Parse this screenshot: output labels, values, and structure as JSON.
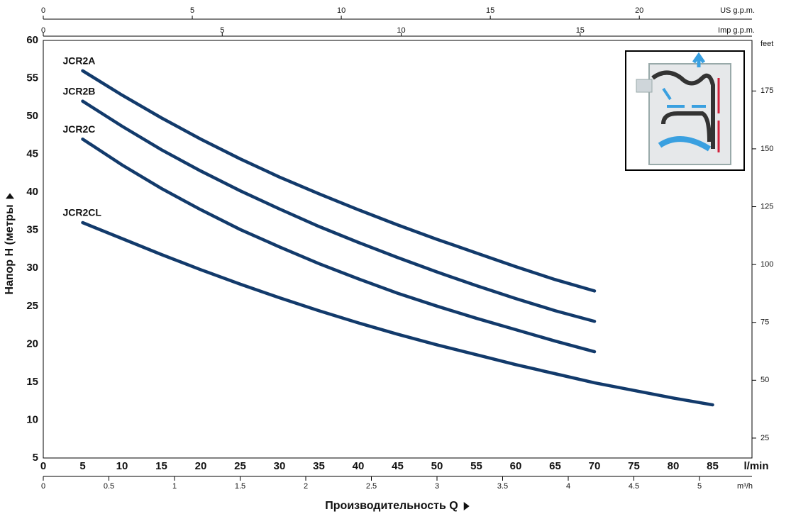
{
  "chart_data": {
    "type": "line",
    "y_label": "Напор H (метры",
    "x_label": "Производительность Q",
    "x_unit": "l/min",
    "x": [
      5,
      10,
      15,
      20,
      25,
      30,
      35,
      40,
      45,
      50,
      55,
      60,
      65,
      70,
      75,
      80,
      85
    ],
    "series": [
      {
        "name": "JCR2A",
        "color": "#123a6b",
        "values": [
          56,
          52.8,
          49.8,
          47,
          44.4,
          42,
          39.8,
          37.7,
          35.7,
          33.8,
          32,
          30.2,
          28.5,
          27,
          null,
          null,
          null
        ]
      },
      {
        "name": "JCR2B",
        "color": "#123a6b",
        "values": [
          52,
          48.7,
          45.6,
          42.8,
          40.2,
          37.8,
          35.5,
          33.4,
          31.4,
          29.5,
          27.7,
          26,
          24.4,
          23,
          null,
          null,
          null
        ]
      },
      {
        "name": "JCR2C",
        "color": "#123a6b",
        "values": [
          47,
          43.6,
          40.5,
          37.7,
          35.1,
          32.8,
          30.6,
          28.6,
          26.7,
          25,
          23.4,
          21.9,
          20.4,
          19,
          null,
          null,
          null
        ]
      },
      {
        "name": "JCR2CL",
        "color": "#123a6b",
        "values": [
          36,
          33.9,
          31.8,
          29.8,
          27.9,
          26.1,
          24.4,
          22.8,
          21.3,
          19.9,
          18.6,
          17.3,
          16.1,
          14.9,
          13.9,
          12.9,
          12
        ]
      }
    ],
    "xlim": [
      0,
      90
    ],
    "xticks": [
      0,
      5,
      10,
      15,
      20,
      25,
      30,
      35,
      40,
      45,
      50,
      55,
      60,
      65,
      70,
      75,
      80,
      85
    ],
    "ylim": [
      5,
      60
    ],
    "yticks": [
      5,
      10,
      15,
      20,
      25,
      30,
      35,
      40,
      45,
      50,
      55,
      60
    ],
    "grid": true,
    "y2_label": "feet",
    "y2lim": [
      16.4,
      196.85
    ],
    "y2ticks": [
      25,
      50,
      75,
      100,
      125,
      150,
      175
    ],
    "top_axes": [
      {
        "label": "US g.p.m.",
        "lim": [
          0,
          23.78
        ],
        "ticks": [
          0,
          5,
          10,
          15,
          20
        ]
      },
      {
        "label": "Imp g.p.m.",
        "lim": [
          0,
          19.8
        ],
        "ticks": [
          0,
          5,
          10,
          15
        ]
      }
    ],
    "bottom_axis": {
      "label": "m³/h",
      "lim": [
        0,
        5.4
      ],
      "ticks": [
        0,
        0.5,
        1,
        1.5,
        2,
        2.5,
        3,
        3.5,
        4,
        4.5,
        5
      ]
    }
  }
}
